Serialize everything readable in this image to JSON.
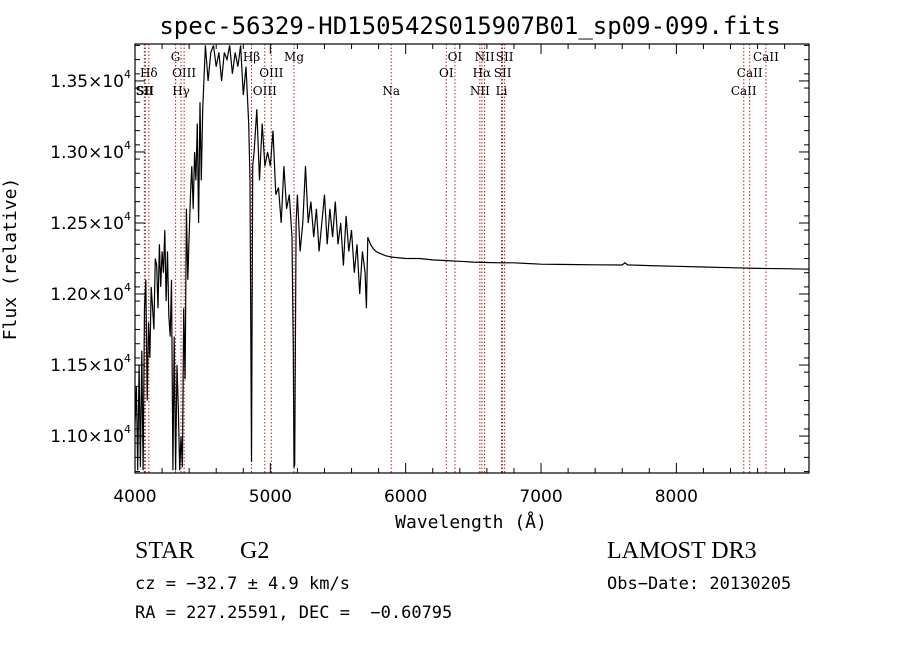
{
  "chart_data": {
    "type": "line",
    "title": "spec-56329-HD150542S015907B01_sp09-099.fits",
    "xlabel": "Wavelength (Å)",
    "ylabel": "Flux (relative)",
    "xlim": [
      4000,
      8980
    ],
    "ylim": [
      10740,
      13760
    ],
    "xticks": [
      4000,
      5000,
      6000,
      7000,
      8000
    ],
    "yticks": [
      {
        "value": 11000,
        "mant": "1.10",
        "exp": "4"
      },
      {
        "value": 11500,
        "mant": "1.15",
        "exp": "4"
      },
      {
        "value": 12000,
        "mant": "1.20",
        "exp": "4"
      },
      {
        "value": 12500,
        "mant": "1.25",
        "exp": "4"
      },
      {
        "value": 13000,
        "mant": "1.30",
        "exp": "4"
      },
      {
        "value": 13500,
        "mant": "1.35",
        "exp": "4"
      }
    ],
    "tick_mult": "×10",
    "series": [
      {
        "x": [
          4000,
          4010,
          4020,
          4030,
          4040,
          4050,
          4060,
          4070,
          4080,
          4090,
          4100,
          4110,
          4120,
          4130,
          4140,
          4150,
          4160,
          4170,
          4180,
          4190,
          4200,
          4210,
          4220,
          4230,
          4240,
          4250,
          4260,
          4270,
          4280,
          4290,
          4300,
          4310,
          4320,
          4330,
          4340,
          4350,
          4360,
          4370,
          4380,
          4390,
          4400,
          4410,
          4420,
          4430,
          4440,
          4450,
          4460,
          4470,
          4480,
          4490,
          4500,
          4520,
          4540,
          4560,
          4580,
          4600,
          4620,
          4640,
          4660,
          4680,
          4700,
          4720,
          4740,
          4760,
          4780,
          4800,
          4820,
          4840,
          4850,
          4861,
          4870,
          4880,
          4900,
          4920,
          4940,
          4960,
          4980,
          5000,
          5020,
          5040,
          5060,
          5080,
          5100,
          5120,
          5140,
          5160,
          5170,
          5175,
          5180,
          5190,
          5200,
          5220,
          5240,
          5260,
          5280,
          5300,
          5320,
          5340,
          5360,
          5380,
          5400,
          5420,
          5440,
          5460,
          5480,
          5500,
          5520,
          5540,
          5560,
          5580,
          5600,
          5620,
          5640,
          5660,
          5680,
          5700,
          5710,
          5720,
          5740,
          5760,
          5780,
          5800,
          5850,
          5900,
          6000,
          6100,
          6200,
          6300,
          6400,
          6500,
          6600,
          6700,
          6800,
          6900,
          7000,
          7200,
          7400,
          7600,
          7620,
          7640,
          7800,
          8000,
          8200,
          8400,
          8600,
          8800,
          8980
        ],
        "y": [
          11080,
          11350,
          10760,
          11500,
          10780,
          11600,
          10760,
          11900,
          12100,
          11250,
          11800,
          11550,
          12050,
          11900,
          11750,
          12250,
          12200,
          11900,
          12350,
          12050,
          12300,
          12150,
          12450,
          11950,
          12300,
          11850,
          11700,
          12100,
          10760,
          11700,
          10760,
          11500,
          11200,
          10760,
          11000,
          10780,
          11900,
          11400,
          12600,
          12100,
          12400,
          12700,
          12900,
          12600,
          13000,
          12800,
          13200,
          12500,
          13350,
          12800,
          13300,
          13750,
          13500,
          13700,
          13750,
          13600,
          13700,
          13500,
          13700,
          13650,
          13750,
          13550,
          13700,
          13600,
          13750,
          13400,
          13600,
          13200,
          12800,
          10820,
          12900,
          13000,
          13300,
          12800,
          13200,
          12900,
          13000,
          12900,
          13150,
          12700,
          12750,
          12500,
          12900,
          12600,
          12700,
          12400,
          11600,
          10780,
          10800,
          12500,
          12700,
          12300,
          12500,
          12900,
          12500,
          12650,
          12400,
          12600,
          12300,
          12500,
          12700,
          12350,
          12600,
          12400,
          12650,
          12350,
          12500,
          12200,
          12550,
          12300,
          12450,
          12150,
          12350,
          12000,
          12300,
          12150,
          11900,
          12400,
          12350,
          12320,
          12300,
          12290,
          12270,
          12260,
          12250,
          12250,
          12240,
          12235,
          12230,
          12225,
          12222,
          12220,
          12220,
          12215,
          12210,
          12208,
          12206,
          12204,
          12220,
          12205,
          12200,
          12195,
          12190,
          12185,
          12180,
          12178,
          12175
        ]
      }
    ],
    "lines": [
      {
        "w": 4069,
        "label": "SII",
        "row": 2
      },
      {
        "w": 4076,
        "label": "SII",
        "row": 2
      },
      {
        "w": 4102,
        "label": "Hδ",
        "row": 1
      },
      {
        "w": 4300,
        "label": "G",
        "row": 0
      },
      {
        "w": 4340,
        "label": "Hγ",
        "row": 2
      },
      {
        "w": 4363,
        "label": "OIII",
        "row": 1
      },
      {
        "w": 4861,
        "label": "Hβ",
        "row": 0
      },
      {
        "w": 4959,
        "label": "OIII",
        "row": 2
      },
      {
        "w": 5007,
        "label": "OIII",
        "row": 1
      },
      {
        "w": 5175,
        "label": "Mg",
        "row": 0
      },
      {
        "w": 5893,
        "label": "Na",
        "row": 2
      },
      {
        "w": 6300,
        "label": "OI",
        "row": 1
      },
      {
        "w": 6364,
        "label": "OI",
        "row": 0
      },
      {
        "w": 6548,
        "label": "NII",
        "row": 2
      },
      {
        "w": 6563,
        "label": "Hα",
        "row": 1
      },
      {
        "w": 6583,
        "label": "NII",
        "row": 0
      },
      {
        "w": 6708,
        "label": "Li",
        "row": 2
      },
      {
        "w": 6716,
        "label": "SII",
        "row": 1
      },
      {
        "w": 6731,
        "label": "SII",
        "row": 0
      },
      {
        "w": 8498,
        "label": "CaII",
        "row": 2
      },
      {
        "w": 8542,
        "label": "CaII",
        "row": 1
      },
      {
        "w": 8662,
        "label": "CaII",
        "row": 0
      }
    ]
  },
  "footer": {
    "class_label": "STAR",
    "subclass": "G2",
    "survey": "LAMOST DR3",
    "cz": "cz = −32.7 ± 4.9 km/s",
    "obs_date": "Obs−Date: 20130205",
    "coords": "RA = 227.25591, DEC =  −0.60795"
  }
}
